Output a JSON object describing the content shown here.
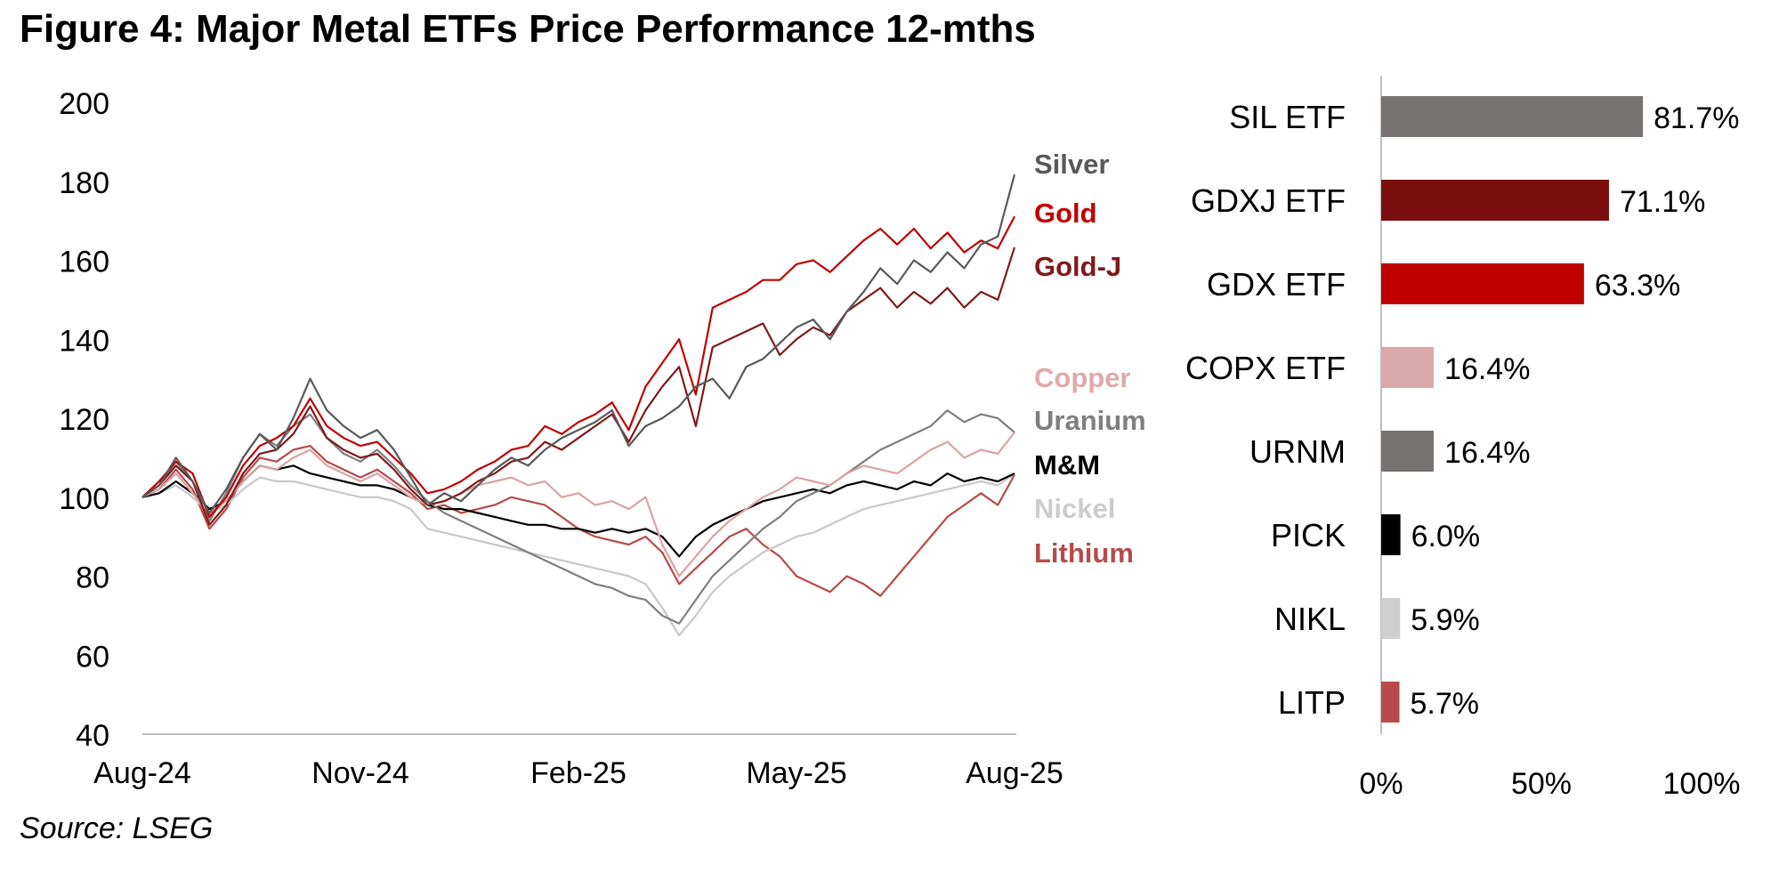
{
  "figure": {
    "title": "Figure 4: Major Metal ETFs Price Performance 12-mths",
    "source": "Source: LSEG"
  },
  "chart_data": [
    {
      "type": "line",
      "title": "",
      "xlabel": "",
      "ylabel": "",
      "ylim": [
        40,
        200
      ],
      "y_ticks": [
        "200",
        "180",
        "160",
        "140",
        "120",
        "100",
        "80",
        "60",
        "40"
      ],
      "x_ticks": [
        "Aug-24",
        "Nov-24",
        "Feb-25",
        "May-25",
        "Aug-25"
      ],
      "x": [
        0,
        1,
        2,
        3,
        4,
        5,
        6,
        7,
        8,
        9,
        10,
        11,
        12,
        13,
        14,
        15,
        16,
        17,
        18,
        19,
        20,
        21,
        22,
        23,
        24,
        25,
        26,
        27,
        28,
        29,
        30,
        31,
        32,
        33,
        34,
        35,
        36,
        37,
        38,
        39,
        40,
        41,
        42,
        43,
        44,
        45,
        46,
        47,
        48,
        49,
        50,
        51,
        52
      ],
      "series": [
        {
          "name": "Silver",
          "color": "#595959",
          "values": [
            100,
            103,
            110,
            104,
            96,
            102,
            110,
            116,
            112,
            120,
            130,
            122,
            118,
            115,
            117,
            112,
            105,
            98,
            101,
            99,
            103,
            107,
            110,
            108,
            112,
            115,
            117,
            119,
            122,
            113,
            118,
            120,
            123,
            128,
            130,
            125,
            133,
            135,
            139,
            143,
            145,
            140,
            147,
            152,
            158,
            154,
            160,
            157,
            162,
            158,
            164,
            166,
            181.7
          ]
        },
        {
          "name": "Gold",
          "color": "#c00000",
          "values": [
            100,
            104,
            109,
            106,
            95,
            100,
            108,
            113,
            115,
            118,
            125,
            118,
            115,
            113,
            114,
            110,
            106,
            101,
            102,
            104,
            107,
            109,
            112,
            113,
            118,
            116,
            119,
            121,
            124,
            117,
            128,
            134,
            140,
            126,
            148,
            150,
            152,
            155,
            155,
            159,
            160,
            157,
            161,
            165,
            168,
            164,
            168,
            163,
            167,
            162,
            165,
            163,
            171.1
          ]
        },
        {
          "name": "Gold-J",
          "color": "#7f1a1a",
          "values": [
            100,
            103,
            108,
            104,
            93,
            98,
            106,
            111,
            112,
            116,
            123,
            115,
            112,
            110,
            111,
            107,
            102,
            98,
            99,
            101,
            104,
            106,
            109,
            110,
            114,
            112,
            115,
            118,
            121,
            114,
            122,
            128,
            133,
            118,
            138,
            140,
            142,
            144,
            136,
            140,
            143,
            141,
            147,
            150,
            153,
            148,
            152,
            149,
            153,
            148,
            152,
            150,
            163.3
          ]
        },
        {
          "name": "Copper",
          "color": "#d9a3a3",
          "values": [
            100,
            102,
            106,
            101,
            96,
            99,
            104,
            108,
            107,
            110,
            112,
            108,
            106,
            104,
            106,
            103,
            100,
            98,
            99,
            101,
            103,
            104,
            105,
            103,
            104,
            100,
            101,
            98,
            99,
            97,
            100,
            88,
            80,
            85,
            90,
            94,
            97,
            100,
            102,
            105,
            104,
            103,
            106,
            108,
            107,
            106,
            109,
            112,
            114,
            110,
            112,
            111,
            116.4
          ]
        },
        {
          "name": "Uranium",
          "color": "#7f7f7f",
          "values": [
            100,
            103,
            109,
            104,
            94,
            101,
            110,
            116,
            113,
            118,
            121,
            115,
            111,
            109,
            112,
            108,
            103,
            99,
            96,
            94,
            92,
            90,
            88,
            86,
            84,
            82,
            80,
            78,
            77,
            75,
            74,
            70,
            68,
            74,
            80,
            84,
            88,
            92,
            95,
            99,
            101,
            103,
            106,
            109,
            112,
            114,
            116,
            118,
            122,
            119,
            121,
            120,
            116.4
          ]
        },
        {
          "name": "M&M",
          "color": "#000000",
          "values": [
            100,
            101,
            104,
            101,
            97,
            99,
            104,
            108,
            107,
            108,
            106,
            105,
            104,
            103,
            103,
            102,
            100,
            98,
            97,
            97,
            96,
            95,
            94,
            93,
            93,
            92,
            92,
            91,
            92,
            91,
            92,
            90,
            85,
            90,
            93,
            95,
            97,
            99,
            100,
            101,
            102,
            101,
            103,
            104,
            103,
            102,
            104,
            103,
            106,
            104,
            105,
            104,
            106.0
          ]
        },
        {
          "name": "Nickel",
          "color": "#c8c8c8",
          "values": [
            100,
            101,
            103,
            100,
            96,
            98,
            102,
            105,
            104,
            104,
            103,
            102,
            101,
            100,
            100,
            99,
            97,
            92,
            91,
            90,
            89,
            88,
            87,
            86,
            85,
            84,
            83,
            82,
            81,
            80,
            78,
            72,
            65,
            70,
            76,
            80,
            83,
            86,
            88,
            90,
            91,
            93,
            95,
            97,
            98,
            99,
            100,
            101,
            102,
            103,
            104,
            103,
            105.9
          ]
        },
        {
          "name": "Lithium",
          "color": "#b84a4a",
          "values": [
            100,
            102,
            107,
            102,
            92,
            97,
            105,
            110,
            109,
            112,
            113,
            109,
            107,
            105,
            107,
            104,
            101,
            97,
            98,
            96,
            97,
            98,
            100,
            99,
            98,
            95,
            92,
            90,
            89,
            88,
            90,
            86,
            78,
            82,
            86,
            90,
            92,
            88,
            85,
            80,
            78,
            76,
            80,
            78,
            75,
            80,
            85,
            90,
            95,
            98,
            101,
            98,
            105.7
          ]
        }
      ],
      "legend_labels": [
        "Silver",
        "Gold",
        "Gold-J",
        "Copper",
        "Uranium",
        "M&M",
        "Nickel",
        "Lithium"
      ]
    },
    {
      "type": "bar",
      "orientation": "horizontal",
      "categories": [
        "SIL ETF",
        "GDXJ ETF",
        "GDX ETF",
        "COPX ETF",
        "URNM",
        "PICK",
        "NIKL",
        "LITP"
      ],
      "values": [
        81.7,
        71.1,
        63.3,
        16.4,
        16.4,
        6.0,
        5.9,
        5.7
      ],
      "labels": [
        "81.7%",
        "71.1%",
        "63.3%",
        "16.4%",
        "16.4%",
        "6.0%",
        "5.9%",
        "5.7%"
      ],
      "colors": [
        "#777373",
        "#7a0e0e",
        "#c00000",
        "#dba9a9",
        "#777373",
        "#000000",
        "#cfcfcf",
        "#b84a4a"
      ],
      "xlim": [
        0,
        100
      ],
      "x_ticks": [
        "0%",
        "50%",
        "100%"
      ]
    }
  ]
}
